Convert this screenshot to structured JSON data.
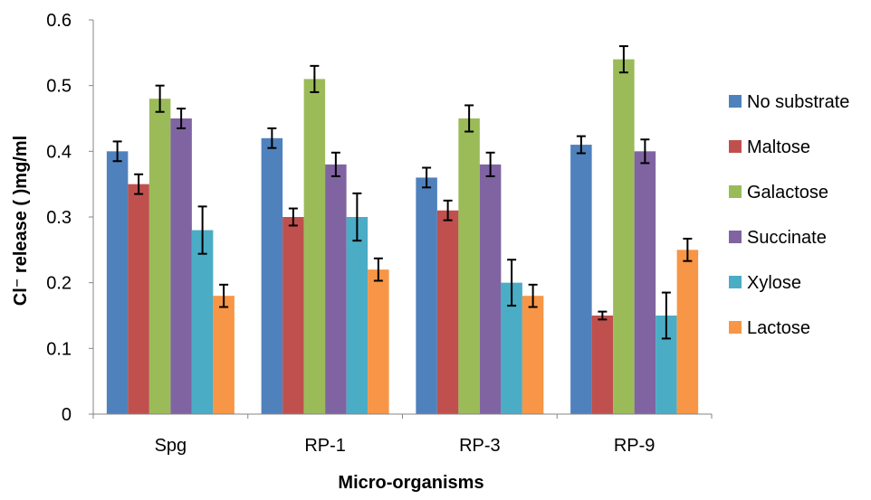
{
  "chart_data": {
    "type": "bar",
    "categories": [
      "Spg",
      "RP-1",
      "RP-3",
      "RP-9"
    ],
    "series": [
      {
        "name": "No substrate",
        "color": "#4F81BD",
        "values": [
          0.4,
          0.42,
          0.36,
          0.41
        ],
        "errors": [
          0.015,
          0.015,
          0.015,
          0.013
        ]
      },
      {
        "name": "Maltose",
        "color": "#C0504D",
        "values": [
          0.35,
          0.3,
          0.31,
          0.15
        ],
        "errors": [
          0.015,
          0.013,
          0.015,
          0.006
        ]
      },
      {
        "name": "Galactose",
        "color": "#9BBB59",
        "values": [
          0.48,
          0.51,
          0.45,
          0.54
        ],
        "errors": [
          0.02,
          0.02,
          0.02,
          0.02
        ]
      },
      {
        "name": "Succinate",
        "color": "#8064A2",
        "values": [
          0.45,
          0.38,
          0.38,
          0.4
        ],
        "errors": [
          0.015,
          0.018,
          0.018,
          0.018
        ]
      },
      {
        "name": "Xylose",
        "color": "#4BACC6",
        "values": [
          0.28,
          0.3,
          0.2,
          0.15
        ],
        "errors": [
          0.036,
          0.036,
          0.035,
          0.035
        ]
      },
      {
        "name": "Lactose",
        "color": "#F79646",
        "values": [
          0.18,
          0.22,
          0.18,
          0.25
        ],
        "errors": [
          0.017,
          0.017,
          0.017,
          0.017
        ]
      }
    ],
    "title": "",
    "xlabel": "Micro-organisms",
    "ylabel": "Cl⁻ release ( )mg/ml",
    "ylim": [
      0,
      0.6
    ],
    "yticks": [
      "0",
      "0.1",
      "0.2",
      "0.3",
      "0.4",
      "0.5",
      "0.6"
    ],
    "grid": false,
    "legend_position": "right"
  }
}
